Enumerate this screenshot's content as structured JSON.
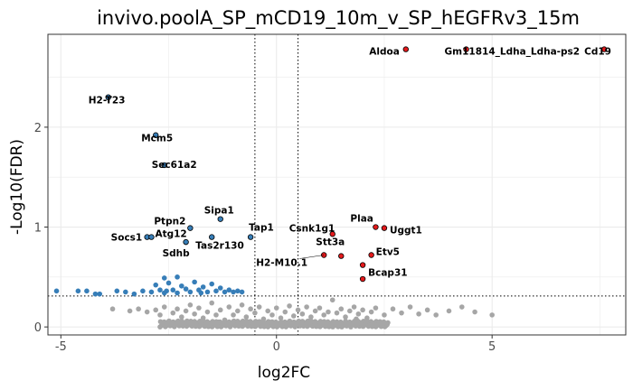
{
  "chart_data": {
    "type": "scatter",
    "title": "invivo.poolA_SP_mCD19_10m_v_SP_hEGFRv3_15m",
    "xlabel": "log2FC",
    "ylabel": "-Log10(FDR)",
    "xlim": [
      -5.3,
      8.1
    ],
    "ylim": [
      -0.08,
      2.93
    ],
    "x_ticks": [
      -5,
      0,
      5
    ],
    "y_ticks": [
      0,
      1,
      2
    ],
    "grid": true,
    "thresholds": {
      "log2fc": [
        -0.5,
        0.5
      ],
      "neg_log10_fdr": 0.31
    },
    "colors": {
      "up": "#e41a1c",
      "down": "#377eb8",
      "ns": "#a6a6a6",
      "grid": "#ebebeb",
      "panel_border": "#333333"
    },
    "labeled_points": [
      {
        "gene": "Aldoa",
        "x": 3.0,
        "y": 2.78,
        "group": "up"
      },
      {
        "gene": "Gm11814_Ldha_Ldha-ps2",
        "x": 4.4,
        "y": 2.78,
        "group": "up"
      },
      {
        "gene": "Cd19",
        "x": 7.6,
        "y": 2.78,
        "group": "up"
      },
      {
        "gene": "H2-T23",
        "x": -3.9,
        "y": 2.3,
        "group": "down"
      },
      {
        "gene": "Mcm5",
        "x": -2.8,
        "y": 1.92,
        "group": "down"
      },
      {
        "gene": "Sec61a2",
        "x": -2.6,
        "y": 1.62,
        "group": "down"
      },
      {
        "gene": "Sipa1",
        "x": -1.3,
        "y": 1.08,
        "group": "down"
      },
      {
        "gene": "Ptpn2",
        "x": -2.0,
        "y": 0.99,
        "group": "down"
      },
      {
        "gene": "Tap1",
        "x": -0.6,
        "y": 0.9,
        "group": "down"
      },
      {
        "gene": "Socs1",
        "x": -3.0,
        "y": 0.9,
        "group": "down"
      },
      {
        "gene": "Atg12",
        "x": -2.9,
        "y": 0.9,
        "group": "down"
      },
      {
        "gene": "Tas2r130",
        "x": -1.5,
        "y": 0.9,
        "group": "down"
      },
      {
        "gene": "Sdhb",
        "x": -2.1,
        "y": 0.85,
        "group": "down"
      },
      {
        "gene": "Plaa",
        "x": 2.3,
        "y": 1.0,
        "group": "up"
      },
      {
        "gene": "Uggt1",
        "x": 2.5,
        "y": 0.99,
        "group": "up"
      },
      {
        "gene": "Csnk1g1",
        "x": 1.3,
        "y": 0.93,
        "group": "up"
      },
      {
        "gene": "Etv5",
        "x": 2.2,
        "y": 0.72,
        "group": "up"
      },
      {
        "gene": "Stt3a",
        "x": 1.5,
        "y": 0.71,
        "group": "up"
      },
      {
        "gene": "H2-M10.1",
        "x": 1.1,
        "y": 0.72,
        "group": "up"
      },
      {
        "gene": "Bcap31",
        "x": 2.0,
        "y": 0.62,
        "group": "up"
      },
      {
        "gene": "",
        "x": 2.0,
        "y": 0.48,
        "group": "up"
      }
    ],
    "down_points": [
      {
        "x": -5.1,
        "y": 0.36
      },
      {
        "x": -4.6,
        "y": 0.36
      },
      {
        "x": -4.4,
        "y": 0.36
      },
      {
        "x": -4.2,
        "y": 0.33
      },
      {
        "x": -4.1,
        "y": 0.33
      },
      {
        "x": -3.7,
        "y": 0.36
      },
      {
        "x": -3.5,
        "y": 0.35
      },
      {
        "x": -3.3,
        "y": 0.33
      },
      {
        "x": -3.1,
        "y": 0.36
      },
      {
        "x": -2.9,
        "y": 0.35
      },
      {
        "x": -2.8,
        "y": 0.42
      },
      {
        "x": -2.7,
        "y": 0.37
      },
      {
        "x": -2.6,
        "y": 0.34
      },
      {
        "x": -2.6,
        "y": 0.49
      },
      {
        "x": -2.5,
        "y": 0.44
      },
      {
        "x": -2.4,
        "y": 0.37
      },
      {
        "x": -2.3,
        "y": 0.34
      },
      {
        "x": -2.3,
        "y": 0.5
      },
      {
        "x": -2.2,
        "y": 0.41
      },
      {
        "x": -2.1,
        "y": 0.38
      },
      {
        "x": -2.0,
        "y": 0.35
      },
      {
        "x": -1.9,
        "y": 0.45
      },
      {
        "x": -1.8,
        "y": 0.37
      },
      {
        "x": -1.7,
        "y": 0.4
      },
      {
        "x": -1.6,
        "y": 0.35
      },
      {
        "x": -1.5,
        "y": 0.43
      },
      {
        "x": -1.4,
        "y": 0.36
      },
      {
        "x": -1.3,
        "y": 0.39
      },
      {
        "x": -1.2,
        "y": 0.35
      },
      {
        "x": -1.1,
        "y": 0.37
      },
      {
        "x": -1.0,
        "y": 0.35
      },
      {
        "x": -0.9,
        "y": 0.36
      },
      {
        "x": -0.8,
        "y": 0.35
      },
      {
        "x": -1.75,
        "y": 0.34
      },
      {
        "x": -2.55,
        "y": 0.36
      }
    ],
    "ns_points": [
      {
        "x": -3.8,
        "y": 0.18
      },
      {
        "x": -3.4,
        "y": 0.16
      },
      {
        "x": -3.2,
        "y": 0.18
      },
      {
        "x": -3.0,
        "y": 0.15
      },
      {
        "x": -2.8,
        "y": 0.17
      },
      {
        "x": -2.7,
        "y": 0.12
      },
      {
        "x": -2.6,
        "y": 0.2
      },
      {
        "x": -2.4,
        "y": 0.14
      },
      {
        "x": -2.3,
        "y": 0.18
      },
      {
        "x": -2.2,
        "y": 0.1
      },
      {
        "x": -2.1,
        "y": 0.16
      },
      {
        "x": -2.0,
        "y": 0.22
      },
      {
        "x": -1.9,
        "y": 0.13
      },
      {
        "x": -1.8,
        "y": 0.19
      },
      {
        "x": -1.7,
        "y": 0.09
      },
      {
        "x": -1.6,
        "y": 0.15
      },
      {
        "x": -1.5,
        "y": 0.24
      },
      {
        "x": -1.4,
        "y": 0.12
      },
      {
        "x": -1.3,
        "y": 0.17
      },
      {
        "x": -1.2,
        "y": 0.07
      },
      {
        "x": -1.1,
        "y": 0.2
      },
      {
        "x": -1.0,
        "y": 0.12
      },
      {
        "x": -0.9,
        "y": 0.16
      },
      {
        "x": -0.8,
        "y": 0.22
      },
      {
        "x": -0.7,
        "y": 0.1
      },
      {
        "x": -0.6,
        "y": 0.18
      },
      {
        "x": -0.5,
        "y": 0.14
      },
      {
        "x": -0.4,
        "y": 0.2
      },
      {
        "x": -0.3,
        "y": 0.08
      },
      {
        "x": -0.2,
        "y": 0.16
      },
      {
        "x": -0.1,
        "y": 0.12
      },
      {
        "x": 0.0,
        "y": 0.19
      },
      {
        "x": 0.1,
        "y": 0.09
      },
      {
        "x": 0.2,
        "y": 0.15
      },
      {
        "x": 0.3,
        "y": 0.21
      },
      {
        "x": 0.4,
        "y": 0.11
      },
      {
        "x": 0.5,
        "y": 0.17
      },
      {
        "x": 0.6,
        "y": 0.13
      },
      {
        "x": 0.7,
        "y": 0.2
      },
      {
        "x": 0.8,
        "y": 0.1
      },
      {
        "x": 0.9,
        "y": 0.16
      },
      {
        "x": 1.0,
        "y": 0.19
      },
      {
        "x": 1.1,
        "y": 0.12
      },
      {
        "x": 1.2,
        "y": 0.15
      },
      {
        "x": 1.3,
        "y": 0.27
      },
      {
        "x": 1.4,
        "y": 0.14
      },
      {
        "x": 1.5,
        "y": 0.18
      },
      {
        "x": 1.6,
        "y": 0.1
      },
      {
        "x": 1.7,
        "y": 0.16
      },
      {
        "x": 1.8,
        "y": 0.2
      },
      {
        "x": 1.9,
        "y": 0.13
      },
      {
        "x": 2.0,
        "y": 0.17
      },
      {
        "x": 2.1,
        "y": 0.09
      },
      {
        "x": 2.2,
        "y": 0.15
      },
      {
        "x": 2.3,
        "y": 0.19
      },
      {
        "x": 2.5,
        "y": 0.12
      },
      {
        "x": 2.7,
        "y": 0.18
      },
      {
        "x": 2.9,
        "y": 0.14
      },
      {
        "x": 3.1,
        "y": 0.2
      },
      {
        "x": 3.3,
        "y": 0.13
      },
      {
        "x": 3.5,
        "y": 0.17
      },
      {
        "x": 3.7,
        "y": 0.12
      },
      {
        "x": 4.0,
        "y": 0.16
      },
      {
        "x": 4.3,
        "y": 0.2
      },
      {
        "x": 4.6,
        "y": 0.15
      },
      {
        "x": 5.0,
        "y": 0.12
      },
      {
        "x": 1.85,
        "y": 0.08
      },
      {
        "x": -1.35,
        "y": 0.05
      },
      {
        "x": 0.75,
        "y": 0.06
      },
      {
        "x": -0.55,
        "y": 0.04
      }
    ],
    "ns_dense_band": {
      "x_range": [
        -2.7,
        2.6
      ],
      "y_range": [
        0.0,
        0.06
      ]
    }
  }
}
